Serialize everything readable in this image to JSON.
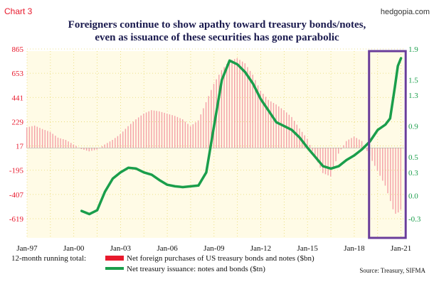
{
  "chart_label": "Chart 3",
  "watermark": "hedgopia.com",
  "source": "Source: Treasury, SIFMA",
  "legend_prefix": "12-month running total:",
  "chart_data": {
    "type": "bar",
    "title": "Foreigners continue to show apathy toward treasury bonds/notes,",
    "subtitle": "even as issuance of these securities has gone parabolic",
    "x_ticks": [
      "Jan-97",
      "Jan-00",
      "Jan-03",
      "Jan-06",
      "Jan-09",
      "Jan-12",
      "Jan-15",
      "Jan-18",
      "Jan-21"
    ],
    "x_range": [
      1997.0,
      2021.2
    ],
    "y_left": {
      "ticks": [
        865,
        653,
        441,
        229,
        17,
        -195,
        -407,
        -619
      ],
      "range": [
        -619,
        865
      ],
      "color": "#e8192c"
    },
    "y_right": {
      "ticks": [
        1.9,
        1.5,
        1.3,
        0.9,
        0.5,
        0.3,
        0.0,
        -0.3
      ],
      "range": [
        -0.3,
        1.9
      ],
      "color": "#1a9e4b"
    },
    "grid": "dotted",
    "highlight_box": {
      "x_range": [
        2018.95,
        2021.3
      ],
      "color": "#6a3d9a"
    },
    "series": [
      {
        "name": "Net foreign purchases of US treasury bonds and notes ($bn)",
        "axis": "left",
        "type": "bar",
        "color": "#f4a0a8",
        "data": [
          [
            1997.0,
            180
          ],
          [
            1997.5,
            195
          ],
          [
            1998.0,
            165
          ],
          [
            1998.5,
            140
          ],
          [
            1999.0,
            90
          ],
          [
            1999.5,
            70
          ],
          [
            2000.0,
            30
          ],
          [
            2000.5,
            -10
          ],
          [
            2001.0,
            -30
          ],
          [
            2001.5,
            -15
          ],
          [
            2002.0,
            30
          ],
          [
            2002.5,
            70
          ],
          [
            2003.0,
            120
          ],
          [
            2003.5,
            190
          ],
          [
            2004.0,
            250
          ],
          [
            2004.5,
            300
          ],
          [
            2005.0,
            330
          ],
          [
            2005.5,
            320
          ],
          [
            2006.0,
            300
          ],
          [
            2006.5,
            280
          ],
          [
            2007.0,
            250
          ],
          [
            2007.5,
            190
          ],
          [
            2008.0,
            240
          ],
          [
            2008.5,
            400
          ],
          [
            2009.0,
            560
          ],
          [
            2009.5,
            680
          ],
          [
            2010.0,
            760
          ],
          [
            2010.5,
            785
          ],
          [
            2011.0,
            740
          ],
          [
            2011.5,
            640
          ],
          [
            2012.0,
            500
          ],
          [
            2012.5,
            420
          ],
          [
            2013.0,
            380
          ],
          [
            2013.5,
            330
          ],
          [
            2014.0,
            270
          ],
          [
            2014.5,
            170
          ],
          [
            2015.0,
            80
          ],
          [
            2015.5,
            -80
          ],
          [
            2016.0,
            -220
          ],
          [
            2016.5,
            -250
          ],
          [
            2017.0,
            -50
          ],
          [
            2017.5,
            60
          ],
          [
            2018.0,
            100
          ],
          [
            2018.5,
            60
          ],
          [
            2019.0,
            -70
          ],
          [
            2019.5,
            -200
          ],
          [
            2020.0,
            -330
          ],
          [
            2020.3,
            -450
          ],
          [
            2020.6,
            -580
          ],
          [
            2020.9,
            -560
          ],
          [
            2021.0,
            -540
          ]
        ]
      },
      {
        "name": "Net treasury issuance: notes and bonds ($tn)",
        "axis": "right",
        "type": "line",
        "color": "#1a9e4b",
        "data": [
          [
            2000.5,
            -0.2
          ],
          [
            2001.0,
            -0.24
          ],
          [
            2001.5,
            -0.19
          ],
          [
            2002.0,
            0.05
          ],
          [
            2002.5,
            0.22
          ],
          [
            2003.0,
            0.3
          ],
          [
            2003.5,
            0.36
          ],
          [
            2004.0,
            0.35
          ],
          [
            2004.5,
            0.3
          ],
          [
            2005.0,
            0.27
          ],
          [
            2005.5,
            0.2
          ],
          [
            2006.0,
            0.14
          ],
          [
            2006.5,
            0.12
          ],
          [
            2007.0,
            0.11
          ],
          [
            2007.5,
            0.12
          ],
          [
            2008.0,
            0.13
          ],
          [
            2008.5,
            0.3
          ],
          [
            2009.0,
            0.9
          ],
          [
            2009.5,
            1.5
          ],
          [
            2010.0,
            1.75
          ],
          [
            2010.5,
            1.7
          ],
          [
            2011.0,
            1.6
          ],
          [
            2011.5,
            1.45
          ],
          [
            2012.0,
            1.25
          ],
          [
            2012.5,
            1.1
          ],
          [
            2013.0,
            0.95
          ],
          [
            2013.5,
            0.9
          ],
          [
            2014.0,
            0.85
          ],
          [
            2014.5,
            0.75
          ],
          [
            2015.0,
            0.62
          ],
          [
            2015.5,
            0.5
          ],
          [
            2016.0,
            0.38
          ],
          [
            2016.5,
            0.35
          ],
          [
            2017.0,
            0.38
          ],
          [
            2017.5,
            0.46
          ],
          [
            2018.0,
            0.52
          ],
          [
            2018.5,
            0.6
          ],
          [
            2019.0,
            0.7
          ],
          [
            2019.5,
            0.85
          ],
          [
            2020.0,
            0.92
          ],
          [
            2020.3,
            1.0
          ],
          [
            2020.6,
            1.4
          ],
          [
            2020.8,
            1.68
          ],
          [
            2021.0,
            1.78
          ]
        ]
      }
    ]
  }
}
